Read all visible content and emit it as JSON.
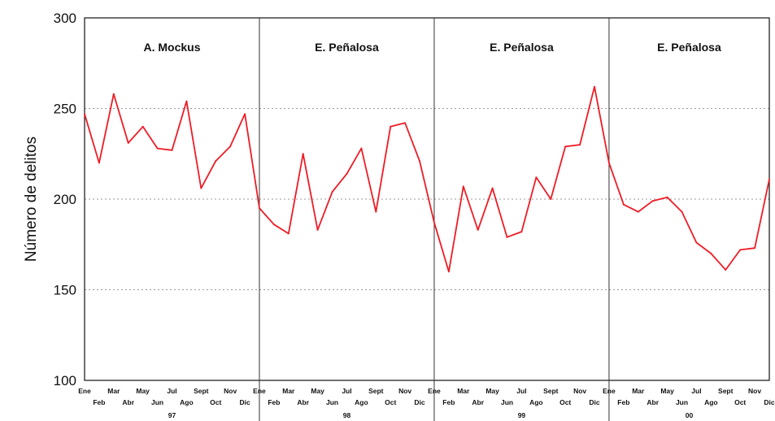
{
  "chart_data": {
    "type": "line",
    "title": "",
    "xlabel": "",
    "ylabel": "Número de delitos",
    "ylim": [
      100,
      300
    ],
    "yticks": [
      100,
      150,
      200,
      250,
      300
    ],
    "grid": true,
    "months": [
      "Ene",
      "Feb",
      "Mar",
      "Abr",
      "May",
      "Jun",
      "Jul",
      "Ago",
      "Sept",
      "Oct",
      "Nov",
      "Dic"
    ],
    "years": [
      "97",
      "98",
      "99",
      "00"
    ],
    "panels": [
      "A. Mockus",
      "E. Peñalosa",
      "E. Peñalosa",
      "E. Peñalosa"
    ],
    "series": [
      {
        "color": "#ee1c25",
        "values": [
          247,
          220,
          258,
          231,
          240,
          228,
          227,
          254,
          206,
          221,
          229,
          247,
          195,
          186,
          181,
          225,
          183,
          204,
          214,
          228,
          193,
          240,
          242,
          221,
          187,
          160,
          207,
          183,
          206,
          179,
          182,
          212,
          200,
          229,
          230,
          262,
          220,
          197,
          193,
          199,
          201,
          193,
          176,
          170,
          161,
          172,
          173,
          211
        ]
      }
    ]
  }
}
